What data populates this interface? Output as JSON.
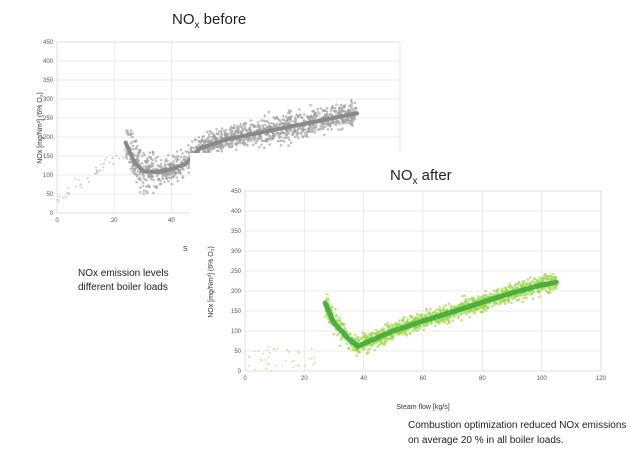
{
  "chart_data": [
    {
      "type": "scatter",
      "title": "NOx before",
      "title_main": "NO",
      "title_sub": "x",
      "title_rest": " before",
      "ylabel": "NOx [mg/Nm³] (6% O₂)",
      "ylim": [
        0,
        450
      ],
      "yticks": [
        0,
        50,
        100,
        150,
        200,
        250,
        300,
        350,
        400,
        450
      ],
      "xlim": [
        0,
        120
      ],
      "xticks": [
        0,
        20,
        40
      ],
      "xlabel_fragment": "S",
      "grid": true,
      "point_color": "#a0a0a0",
      "trend_color": "#8a8a8a",
      "trend": {
        "x": [
          24,
          27,
          30,
          35,
          40,
          45,
          50,
          60,
          70,
          80,
          90,
          100,
          105
        ],
        "y": [
          185,
          135,
          110,
          108,
          115,
          130,
          170,
          195,
          210,
          225,
          240,
          255,
          262
        ]
      },
      "caption_lines": [
        "NOx emission levels",
        "different boiler loads"
      ]
    },
    {
      "type": "scatter",
      "title": "NOx after",
      "title_main": "NO",
      "title_sub": "x",
      "title_rest": " after",
      "ylabel": "NOx [mg/Nm³] (6% O₂)",
      "ylim": [
        0,
        450
      ],
      "yticks": [
        0,
        50,
        100,
        150,
        200,
        250,
        300,
        350,
        400,
        450
      ],
      "xlim": [
        0,
        120
      ],
      "xticks": [
        0,
        20,
        40,
        60,
        80,
        100,
        120
      ],
      "xlabel": "Steam flow [kg/s]",
      "grid": true,
      "point_color": "#9ed64a",
      "trend_color": "#3aa83a",
      "trend": {
        "x": [
          27,
          30,
          35,
          38,
          42,
          50,
          60,
          70,
          80,
          90,
          100,
          105
        ],
        "y": [
          170,
          120,
          80,
          62,
          75,
          100,
          125,
          148,
          172,
          195,
          215,
          222
        ]
      },
      "caption_lines": [
        "Combustion optimization reduced NOx emissions",
        "on average 20 % in all boiler loads."
      ]
    }
  ]
}
